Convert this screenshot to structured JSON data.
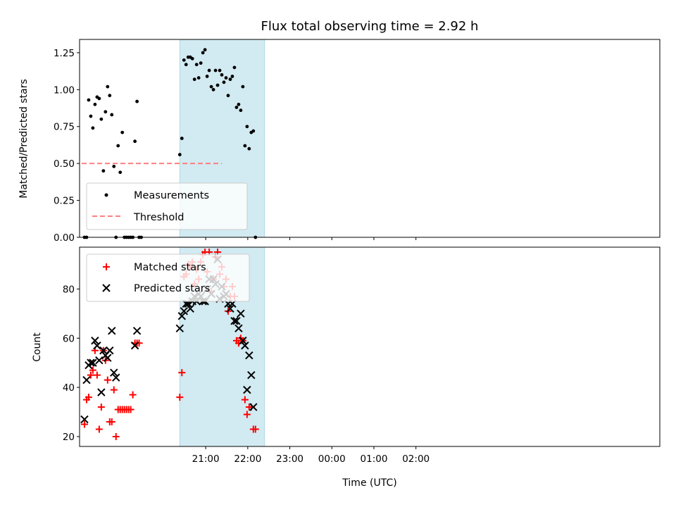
{
  "title": "Flux total observing time = 2.92 h",
  "colors": {
    "shade": "#add8e6",
    "measurement": "#000000",
    "threshold": "#ff7f7f",
    "matched": "#ff0000",
    "predicted": "#000000"
  },
  "chart_data": [
    {
      "type": "scatter",
      "ylabel": "Matched/Predicted stars",
      "xlabel": "",
      "ylim": [
        0,
        1.34
      ],
      "yticks": [
        "0.00",
        "0.25",
        "0.50",
        "0.75",
        "1.00",
        "1.25"
      ],
      "xlim": [
        -180,
        648
      ],
      "xticks_minutes": [
        0,
        60,
        120,
        180,
        240,
        300
      ],
      "shade_span_minutes": [
        -37,
        84
      ],
      "legend": {
        "placement": "lower-left",
        "entries": [
          "Measurements",
          "Threshold"
        ]
      },
      "threshold": {
        "name": "Threshold",
        "value": 0.5,
        "x_range_minutes": [
          -177,
          23
        ]
      },
      "series": [
        {
          "name": "Measurements",
          "marker": "dot",
          "points": [
            [
              -173,
              0.0
            ],
            [
              -170,
              0.0
            ],
            [
              -167,
              0.93
            ],
            [
              -164,
              0.82
            ],
            [
              -161,
              0.74
            ],
            [
              -158,
              0.9
            ],
            [
              -155,
              0.95
            ],
            [
              -152,
              0.94
            ],
            [
              -149,
              0.8
            ],
            [
              -146,
              0.45
            ],
            [
              -143,
              0.85
            ],
            [
              -140,
              1.02
            ],
            [
              -137,
              0.96
            ],
            [
              -134,
              0.83
            ],
            [
              -131,
              0.48
            ],
            [
              -128,
              0.0
            ],
            [
              -125,
              0.62
            ],
            [
              -122,
              0.44
            ],
            [
              -119,
              0.71
            ],
            [
              -116,
              0.0
            ],
            [
              -113,
              0.0
            ],
            [
              -110,
              0.0
            ],
            [
              -107,
              0.0
            ],
            [
              -104,
              0.0
            ],
            [
              -101,
              0.65
            ],
            [
              -98,
              0.92
            ],
            [
              -95,
              0.0
            ],
            [
              -92,
              0.0
            ],
            [
              -37,
              0.56
            ],
            [
              -34,
              0.67
            ],
            [
              -31,
              1.2
            ],
            [
              -28,
              1.17
            ],
            [
              -25,
              1.22
            ],
            [
              -22,
              1.22
            ],
            [
              -19,
              1.21
            ],
            [
              -16,
              1.07
            ],
            [
              -13,
              1.17
            ],
            [
              -10,
              1.08
            ],
            [
              -7,
              1.18
            ],
            [
              -4,
              1.25
            ],
            [
              -1,
              1.27
            ],
            [
              2,
              1.09
            ],
            [
              5,
              1.13
            ],
            [
              8,
              1.02
            ],
            [
              11,
              1.0
            ],
            [
              14,
              1.13
            ],
            [
              17,
              1.03
            ],
            [
              20,
              1.13
            ],
            [
              23,
              1.1
            ],
            [
              26,
              1.05
            ],
            [
              29,
              1.08
            ],
            [
              32,
              0.96
            ],
            [
              35,
              1.07
            ],
            [
              38,
              1.09
            ],
            [
              41,
              1.15
            ],
            [
              44,
              0.88
            ],
            [
              47,
              0.9
            ],
            [
              50,
              0.86
            ],
            [
              53,
              1.02
            ],
            [
              56,
              0.62
            ],
            [
              59,
              0.75
            ],
            [
              62,
              0.6
            ],
            [
              65,
              0.71
            ],
            [
              68,
              0.72
            ],
            [
              71,
              0.0
            ]
          ]
        }
      ]
    },
    {
      "type": "scatter",
      "ylabel": "Count",
      "xlabel": "Time (UTC)",
      "ylim": [
        16,
        97
      ],
      "yticks": [
        "20",
        "40",
        "60",
        "80"
      ],
      "xlim": [
        -180,
        648
      ],
      "xticks": [
        "21:00",
        "22:00",
        "23:00",
        "00:00",
        "01:00",
        "02:00"
      ],
      "shade_span_minutes": [
        -37,
        84
      ],
      "legend": {
        "placement": "upper-left",
        "entries": [
          "Matched stars",
          "Predicted stars"
        ]
      },
      "series": [
        {
          "name": "Matched stars",
          "marker": "plus",
          "points": [
            [
              -173,
              25
            ],
            [
              -170,
              35
            ],
            [
              -167,
              36
            ],
            [
              -164,
              45
            ],
            [
              -161,
              47
            ],
            [
              -158,
              55
            ],
            [
              -155,
              45
            ],
            [
              -152,
              23
            ],
            [
              -149,
              32
            ],
            [
              -146,
              55
            ],
            [
              -143,
              51
            ],
            [
              -140,
              43
            ],
            [
              -137,
              26
            ],
            [
              -134,
              26
            ],
            [
              -131,
              39
            ],
            [
              -128,
              20
            ],
            [
              -125,
              31
            ],
            [
              -122,
              31
            ],
            [
              -119,
              31
            ],
            [
              -116,
              31
            ],
            [
              -113,
              31
            ],
            [
              -110,
              31
            ],
            [
              -107,
              31
            ],
            [
              -104,
              37
            ],
            [
              -101,
              58
            ],
            [
              -98,
              58
            ],
            [
              -95,
              58
            ],
            [
              -37,
              36
            ],
            [
              -34,
              46
            ],
            [
              -31,
              85
            ],
            [
              -28,
              86
            ],
            [
              -25,
              90
            ],
            [
              -22,
              89
            ],
            [
              -19,
              91
            ],
            [
              -16,
              82
            ],
            [
              -13,
              88
            ],
            [
              -10,
              84
            ],
            [
              -7,
              91
            ],
            [
              -4,
              94
            ],
            [
              -1,
              95
            ],
            [
              2,
              87
            ],
            [
              5,
              95
            ],
            [
              8,
              79
            ],
            [
              11,
              84
            ],
            [
              14,
              93
            ],
            [
              17,
              95
            ],
            [
              20,
              86
            ],
            [
              23,
              89
            ],
            [
              26,
              81
            ],
            [
              29,
              84
            ],
            [
              32,
              71
            ],
            [
              35,
              77
            ],
            [
              38,
              81
            ],
            [
              41,
              77
            ],
            [
              44,
              59
            ],
            [
              47,
              58
            ],
            [
              50,
              60
            ],
            [
              53,
              59
            ],
            [
              56,
              35
            ],
            [
              59,
              29
            ],
            [
              62,
              32
            ],
            [
              65,
              32
            ],
            [
              68,
              23
            ],
            [
              71,
              23
            ]
          ]
        },
        {
          "name": "Predicted stars",
          "marker": "x",
          "points": [
            [
              -173,
              27
            ],
            [
              -170,
              43
            ],
            [
              -167,
              49
            ],
            [
              -164,
              50
            ],
            [
              -161,
              50
            ],
            [
              -158,
              59
            ],
            [
              -155,
              57
            ],
            [
              -152,
              51
            ],
            [
              -149,
              38
            ],
            [
              -146,
              55
            ],
            [
              -143,
              53
            ],
            [
              -140,
              52
            ],
            [
              -137,
              55
            ],
            [
              -134,
              63
            ],
            [
              -131,
              46
            ],
            [
              -128,
              44
            ],
            [
              -101,
              57
            ],
            [
              -98,
              63
            ],
            [
              -37,
              64
            ],
            [
              -34,
              69
            ],
            [
              -31,
              71
            ],
            [
              -28,
              74
            ],
            [
              -25,
              74
            ],
            [
              -22,
              72
            ],
            [
              -19,
              75
            ],
            [
              -16,
              77
            ],
            [
              -13,
              75
            ],
            [
              -10,
              78
            ],
            [
              -7,
              77
            ],
            [
              -4,
              75
            ],
            [
              -1,
              75
            ],
            [
              2,
              80
            ],
            [
              5,
              84
            ],
            [
              8,
              78
            ],
            [
              11,
              84
            ],
            [
              14,
              82
            ],
            [
              17,
              92
            ],
            [
              20,
              76
            ],
            [
              23,
              81
            ],
            [
              26,
              77
            ],
            [
              29,
              78
            ],
            [
              32,
              74
            ],
            [
              35,
              72
            ],
            [
              38,
              74
            ],
            [
              41,
              67
            ],
            [
              44,
              67
            ],
            [
              47,
              64
            ],
            [
              50,
              70
            ],
            [
              53,
              59
            ],
            [
              56,
              57
            ],
            [
              59,
              39
            ],
            [
              62,
              53
            ],
            [
              65,
              45
            ],
            [
              68,
              32
            ]
          ]
        }
      ]
    }
  ]
}
